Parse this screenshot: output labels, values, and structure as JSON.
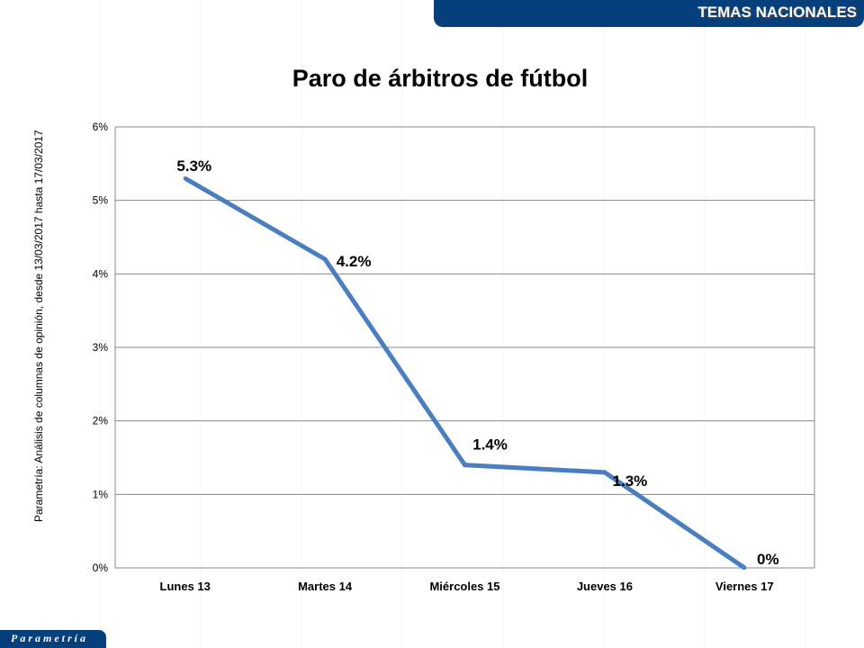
{
  "header": {
    "section": "TEMAS NACIONALES"
  },
  "footer": {
    "brand": "Parametría"
  },
  "source_note": "Parametría: Análisis de columnas de opinión, desde 13/03/2017  hasta  17/03/2017",
  "colors": {
    "header": "#053f7c",
    "line": "#4a7ebf"
  },
  "chart_data": {
    "type": "line",
    "title": "Paro de árbitros de fútbol",
    "categories": [
      "Lunes 13",
      "Martes 14",
      "Miércoles 15",
      "Jueves 16",
      "Viernes 17"
    ],
    "values": [
      5.3,
      4.2,
      1.4,
      1.3,
      0
    ],
    "data_labels": [
      "5.3%",
      "4.2%",
      "1.4%",
      "1.3%",
      "0%"
    ],
    "ylim": [
      0,
      6
    ],
    "yticks": [
      "0%",
      "1%",
      "2%",
      "3%",
      "4%",
      "5%",
      "6%"
    ],
    "grid": true,
    "legend": "none"
  }
}
